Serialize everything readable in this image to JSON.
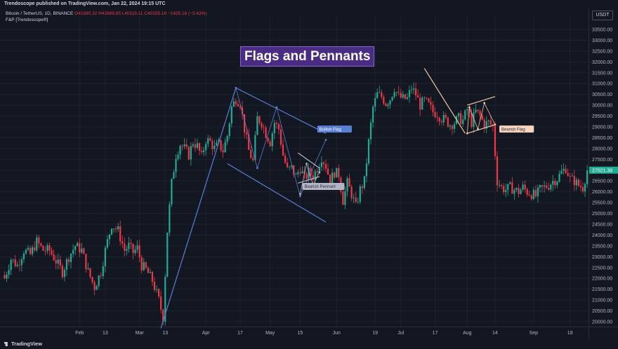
{
  "header": {
    "published_by": "Trendoscope published on TradingView.com, Jan 22, 2024 19:15 UTC"
  },
  "legend": {
    "symbol": "Bitcoin / TetherUS, 1D, BINANCE",
    "ohlc": "O41580.32 H41689.65 L40119.11 C40155.16 −1425.16 (−3.43%)",
    "indicator": "F&P [Trendoscope®]"
  },
  "currency": "USDT",
  "title_box": "Flags and Pennants",
  "footer": {
    "brand": "TradingView"
  },
  "colors": {
    "up": "#22ab94",
    "down": "#f23645",
    "background": "#131722",
    "pattern_blue": "#5b7fd4",
    "pattern_peach": "#f3c6a5"
  },
  "chart_data": {
    "type": "candlestick",
    "title": "Flags and Pennants",
    "ylim": [
      19700,
      34000
    ],
    "y_ticks": [
      20000,
      20500,
      21000,
      21500,
      22000,
      22500,
      23000,
      23500,
      24000,
      24500,
      25000,
      25500,
      26000,
      26500,
      27000,
      27500,
      28000,
      28500,
      29000,
      29500,
      30000,
      30500,
      31000,
      31500,
      32000,
      32500,
      33000,
      33500
    ],
    "x_ticks": [
      {
        "label": "Feb",
        "day": 35
      },
      {
        "label": "13",
        "day": 47
      },
      {
        "label": "Mar",
        "day": 63
      },
      {
        "label": "13",
        "day": 75
      },
      {
        "label": "Apr",
        "day": 94
      },
      {
        "label": "17",
        "day": 110
      },
      {
        "label": "May",
        "day": 124
      },
      {
        "label": "15",
        "day": 138
      },
      {
        "label": "Jun",
        "day": 155
      },
      {
        "label": "19",
        "day": 173
      },
      {
        "label": "Jul",
        "day": 185
      },
      {
        "label": "17",
        "day": 201
      },
      {
        "label": "Aug",
        "day": 216
      },
      {
        "label": "14",
        "day": 229
      },
      {
        "label": "Sep",
        "day": 247
      },
      {
        "label": "18",
        "day": 264
      }
    ],
    "last_price_label": "27021.39",
    "series_anchors": [
      [
        0,
        22000
      ],
      [
        3,
        22900
      ],
      [
        6,
        22600
      ],
      [
        9,
        23300
      ],
      [
        12,
        23100
      ],
      [
        15,
        23700
      ],
      [
        18,
        23300
      ],
      [
        21,
        23300
      ],
      [
        24,
        22800
      ],
      [
        27,
        22300
      ],
      [
        30,
        23000
      ],
      [
        33,
        23500
      ],
      [
        36,
        23300
      ],
      [
        39,
        22300
      ],
      [
        42,
        21600
      ],
      [
        45,
        22300
      ],
      [
        47,
        23300
      ],
      [
        50,
        24500
      ],
      [
        53,
        24200
      ],
      [
        56,
        23300
      ],
      [
        58,
        23500
      ],
      [
        60,
        23200
      ],
      [
        62,
        23400
      ],
      [
        64,
        22600
      ],
      [
        66,
        22400
      ],
      [
        69,
        21900
      ],
      [
        72,
        21000
      ],
      [
        74,
        20200
      ],
      [
        76,
        24200
      ],
      [
        78,
        26400
      ],
      [
        80,
        27700
      ],
      [
        82,
        28200
      ],
      [
        84,
        28000
      ],
      [
        86,
        27700
      ],
      [
        88,
        28300
      ],
      [
        90,
        28100
      ],
      [
        92,
        27600
      ],
      [
        94,
        28400
      ],
      [
        96,
        28300
      ],
      [
        98,
        28000
      ],
      [
        100,
        28200
      ],
      [
        102,
        27900
      ],
      [
        104,
        28600
      ],
      [
        106,
        29900
      ],
      [
        108,
        30300
      ],
      [
        110,
        30100
      ],
      [
        112,
        28900
      ],
      [
        114,
        27900
      ],
      [
        116,
        27400
      ],
      [
        118,
        29400
      ],
      [
        120,
        29200
      ],
      [
        122,
        28700
      ],
      [
        124,
        28300
      ],
      [
        126,
        29200
      ],
      [
        128,
        28900
      ],
      [
        130,
        27700
      ],
      [
        132,
        27000
      ],
      [
        134,
        27100
      ],
      [
        136,
        26700
      ],
      [
        138,
        27100
      ],
      [
        140,
        26600
      ],
      [
        142,
        26900
      ],
      [
        144,
        26700
      ],
      [
        146,
        27100
      ],
      [
        148,
        27600
      ],
      [
        150,
        27200
      ],
      [
        152,
        26500
      ],
      [
        154,
        26900
      ],
      [
        156,
        26800
      ],
      [
        158,
        25600
      ],
      [
        160,
        26400
      ],
      [
        162,
        25900
      ],
      [
        164,
        25300
      ],
      [
        166,
        26100
      ],
      [
        168,
        26500
      ],
      [
        170,
        28300
      ],
      [
        172,
        29900
      ],
      [
        174,
        30500
      ],
      [
        176,
        30400
      ],
      [
        178,
        30100
      ],
      [
        180,
        30300
      ],
      [
        182,
        30800
      ],
      [
        184,
        30400
      ],
      [
        186,
        30300
      ],
      [
        188,
        30300
      ],
      [
        190,
        30800
      ],
      [
        192,
        30500
      ],
      [
        194,
        30000
      ],
      [
        196,
        30200
      ],
      [
        198,
        30000
      ],
      [
        200,
        29700
      ],
      [
        202,
        29600
      ],
      [
        204,
        29400
      ],
      [
        206,
        29300
      ],
      [
        208,
        29100
      ],
      [
        210,
        29200
      ],
      [
        212,
        29400
      ],
      [
        214,
        29300
      ],
      [
        216,
        29800
      ],
      [
        218,
        29200
      ],
      [
        220,
        29700
      ],
      [
        222,
        29500
      ],
      [
        224,
        29100
      ],
      [
        226,
        29200
      ],
      [
        228,
        29000
      ],
      [
        230,
        26500
      ],
      [
        232,
        26200
      ],
      [
        234,
        26100
      ],
      [
        236,
        26200
      ],
      [
        238,
        26100
      ],
      [
        240,
        26000
      ],
      [
        242,
        26200
      ],
      [
        244,
        26000
      ],
      [
        246,
        25900
      ],
      [
        248,
        25800
      ],
      [
        250,
        26100
      ],
      [
        252,
        26200
      ],
      [
        254,
        26300
      ],
      [
        256,
        26500
      ],
      [
        258,
        26600
      ],
      [
        260,
        26900
      ],
      [
        262,
        27100
      ],
      [
        264,
        26600
      ],
      [
        266,
        26500
      ],
      [
        268,
        26300
      ],
      [
        270,
        26200
      ],
      [
        272,
        27000
      ]
    ],
    "patterns": [
      {
        "name": "Bullish Flag",
        "color": "#5b7fd4",
        "pole": [
          [
            73,
            19700
          ],
          [
            108,
            30800
          ]
        ],
        "upper": [
          [
            108,
            30800
          ],
          [
            150,
            28700
          ]
        ],
        "lower": [
          [
            104,
            27300
          ],
          [
            150,
            24600
          ]
        ],
        "zigzag": [
          [
            108,
            30800
          ],
          [
            118,
            27100
          ],
          [
            127,
            29900
          ],
          [
            138,
            25800
          ],
          [
            150,
            28400
          ]
        ]
      },
      {
        "name": "Bearish Pennant",
        "color": "#b5b5c8",
        "upper": [
          [
            137,
            27800
          ],
          [
            147,
            27100
          ]
        ],
        "lower": [
          [
            137,
            26400
          ],
          [
            147,
            26700
          ]
        ],
        "zigzag": [
          [
            138,
            25900
          ],
          [
            141,
            27300
          ],
          [
            144,
            26300
          ],
          [
            147,
            26900
          ]
        ]
      },
      {
        "name": "Bearish Flag",
        "color": "#f3c6a5",
        "pole": [
          [
            196,
            31700
          ],
          [
            215,
            28700
          ]
        ],
        "upper": [
          [
            216,
            30000
          ],
          [
            229,
            30400
          ]
        ],
        "lower": [
          [
            216,
            28700
          ],
          [
            229,
            29100
          ]
        ],
        "zigzag": [
          [
            216,
            28700
          ],
          [
            217,
            29900
          ],
          [
            221,
            28900
          ],
          [
            224,
            30100
          ],
          [
            229,
            29100
          ]
        ]
      }
    ],
    "annotations": [
      {
        "text": "Bullish Flag",
        "day": 146,
        "price": 28900,
        "bg": "#5b7fd4",
        "fg": "#ffffff"
      },
      {
        "text": "Bearish Pennant",
        "day": 139,
        "price": 26250,
        "bg": "#b5b5c8",
        "fg": "#2a2e39"
      },
      {
        "text": "Bearish Flag",
        "day": 231,
        "price": 28900,
        "bg": "#f8d3bd",
        "fg": "#2a2e39"
      }
    ]
  }
}
